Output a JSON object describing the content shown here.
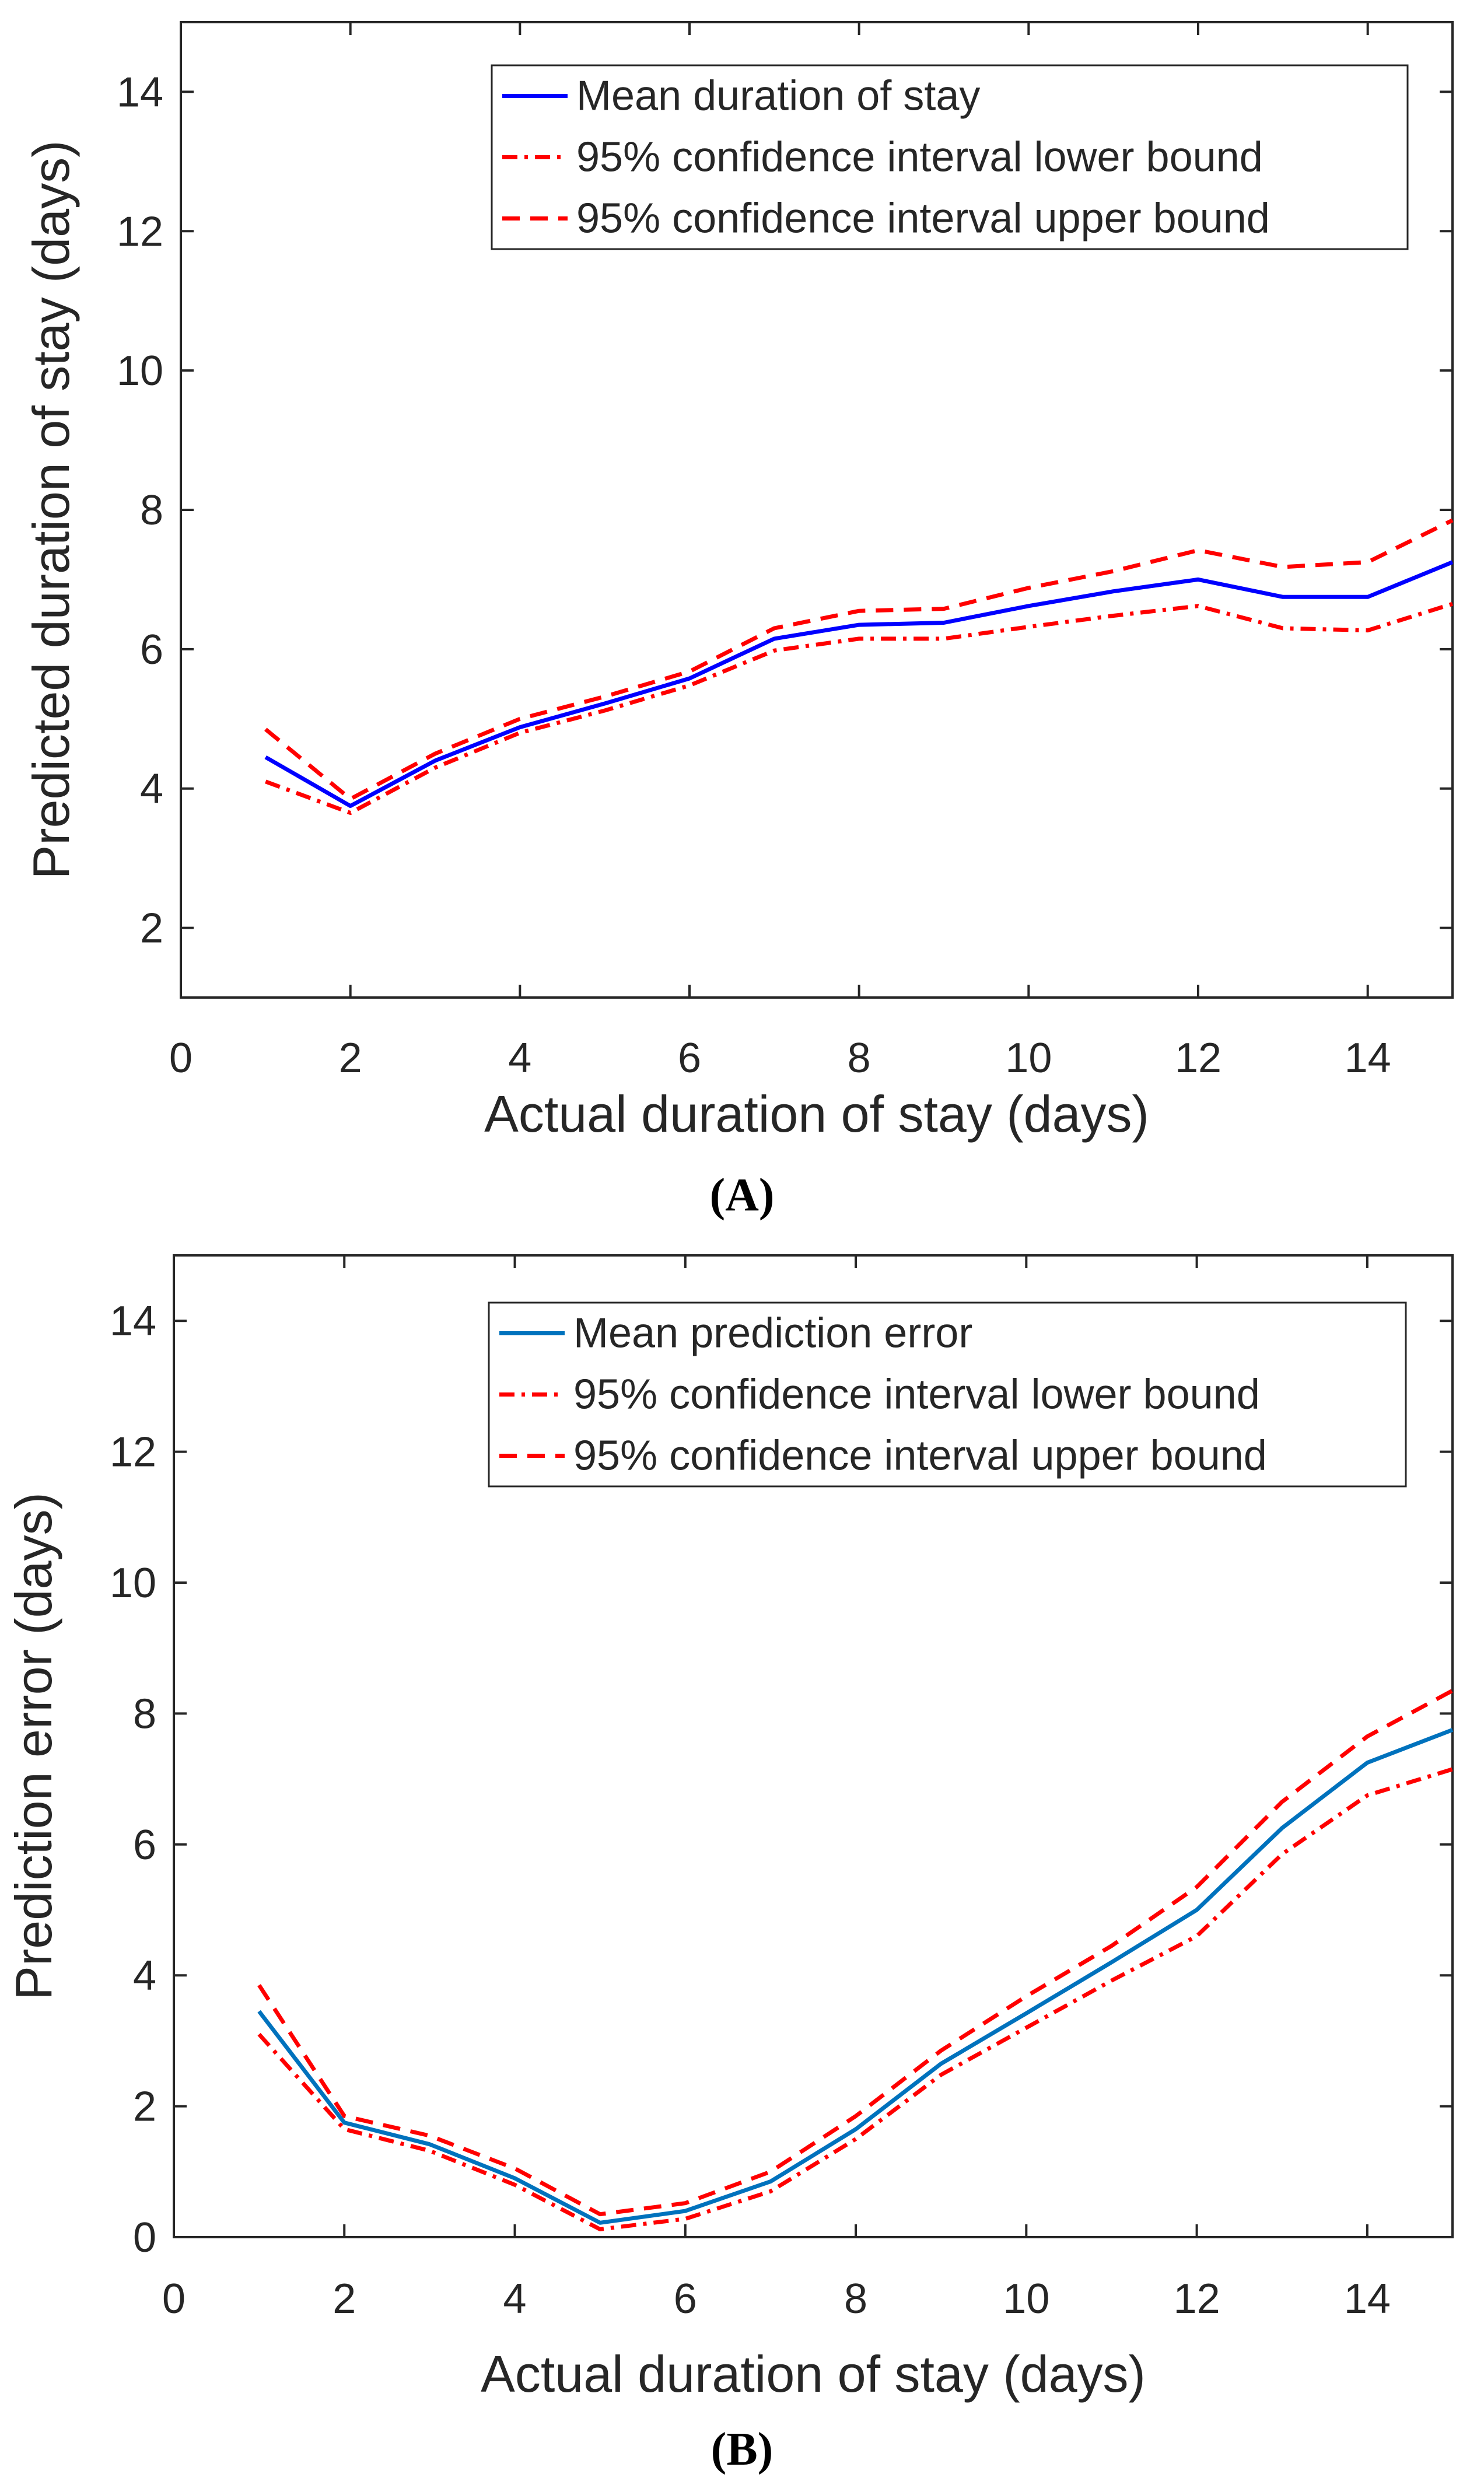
{
  "chart_data": [
    {
      "type": "line",
      "panel_label": "(A)",
      "xlabel": "Actual duration of stay (days)",
      "ylabel": "Predicted duration of stay (days)",
      "xlim": [
        0,
        15
      ],
      "ylim": [
        1,
        15
      ],
      "xticks": [
        0,
        2,
        4,
        6,
        8,
        10,
        12,
        14
      ],
      "yticks": [
        2,
        4,
        6,
        8,
        10,
        12,
        14
      ],
      "grid": false,
      "legend_position": "top-right",
      "x": [
        1,
        2,
        3,
        4,
        5,
        6,
        7,
        8,
        9,
        10,
        11,
        12,
        13,
        14,
        15
      ],
      "series": [
        {
          "name": "Mean duration of stay",
          "style": "solid",
          "color": "#0000ff",
          "values": [
            4.45,
            3.75,
            4.4,
            4.88,
            5.22,
            5.58,
            6.15,
            6.35,
            6.38,
            6.62,
            6.83,
            7.0,
            6.75,
            6.75,
            7.25
          ]
        },
        {
          "name": "95% confidence interval lower bound",
          "style": "dashdot",
          "color": "#ff0000",
          "values": [
            4.1,
            3.65,
            4.3,
            4.8,
            5.12,
            5.48,
            5.98,
            6.15,
            6.15,
            6.32,
            6.48,
            6.62,
            6.3,
            6.27,
            6.65
          ]
        },
        {
          "name": "95% confidence interval upper bound",
          "style": "dashed",
          "color": "#ff0000",
          "values": [
            4.85,
            3.85,
            4.5,
            5.0,
            5.32,
            5.68,
            6.3,
            6.55,
            6.58,
            6.88,
            7.12,
            7.42,
            7.18,
            7.25,
            7.85
          ]
        }
      ]
    },
    {
      "type": "line",
      "panel_label": "(B)",
      "xlabel": "Actual duration of stay (days)",
      "ylabel": "Prediction error (days)",
      "xlim": [
        0,
        15
      ],
      "ylim": [
        0,
        15
      ],
      "xticks": [
        0,
        2,
        4,
        6,
        8,
        10,
        12,
        14
      ],
      "yticks": [
        0,
        2,
        4,
        6,
        8,
        10,
        12,
        14
      ],
      "grid": false,
      "legend_position": "top-right",
      "x": [
        1,
        2,
        3,
        4,
        5,
        6,
        7,
        8,
        9,
        10,
        11,
        12,
        13,
        14,
        15
      ],
      "series": [
        {
          "name": "Mean prediction error",
          "style": "solid",
          "color": "#0072bd",
          "values": [
            3.45,
            1.75,
            1.42,
            0.9,
            0.22,
            0.4,
            0.85,
            1.65,
            2.65,
            3.42,
            4.2,
            5.0,
            6.25,
            7.25,
            7.75
          ]
        },
        {
          "name": "95% confidence interval lower bound",
          "style": "dashdot",
          "color": "#ff0000",
          "values": [
            3.1,
            1.65,
            1.32,
            0.8,
            0.12,
            0.28,
            0.7,
            1.5,
            2.48,
            3.2,
            3.92,
            4.6,
            5.85,
            6.75,
            7.15
          ]
        },
        {
          "name": "95% confidence interval upper bound",
          "style": "dashed",
          "color": "#ff0000",
          "values": [
            3.85,
            1.85,
            1.55,
            1.05,
            0.35,
            0.52,
            1.0,
            1.85,
            2.85,
            3.68,
            4.45,
            5.35,
            6.65,
            7.65,
            8.35
          ]
        }
      ]
    }
  ]
}
